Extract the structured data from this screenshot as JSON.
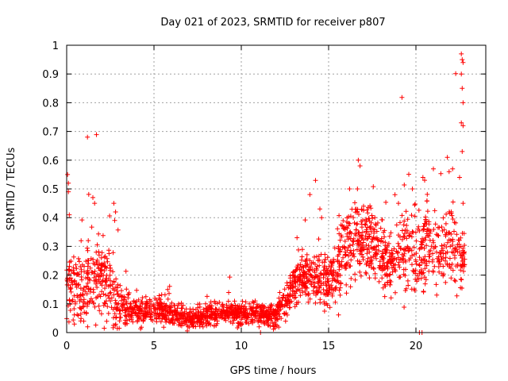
{
  "chart_data": {
    "type": "scatter",
    "title": "Day 021 of 2023, SRMTID for receiver p807",
    "xlabel": "GPS time / hours",
    "ylabel": "SRMTID / TECUs",
    "xlim": [
      0,
      24
    ],
    "ylim": [
      0,
      1
    ],
    "xticks": [
      0,
      5,
      10,
      15,
      20
    ],
    "yticks": [
      0,
      0.1,
      0.2,
      0.3,
      0.4,
      0.5,
      0.6,
      0.7,
      0.8,
      0.9,
      1
    ],
    "ytick_labels": [
      "0",
      "0.1",
      "0.2",
      "0.3",
      "0.4",
      "0.5",
      "0.6",
      "0.7",
      "0.8",
      "0.9",
      "1"
    ],
    "xtick_labels": [
      "0",
      "5",
      "10",
      "15",
      "20"
    ],
    "grid": true,
    "marker": "+",
    "series_color": "#ff0000",
    "x_extent": [
      0,
      22.8
    ],
    "level_profile": [
      [
        0.0,
        0.17,
        0.07
      ],
      [
        0.5,
        0.17,
        0.06
      ],
      [
        1.0,
        0.14,
        0.06
      ],
      [
        1.5,
        0.18,
        0.09
      ],
      [
        2.0,
        0.2,
        0.07
      ],
      [
        2.5,
        0.15,
        0.06
      ],
      [
        3.0,
        0.1,
        0.04
      ],
      [
        4.0,
        0.07,
        0.025
      ],
      [
        5.0,
        0.08,
        0.025
      ],
      [
        6.0,
        0.07,
        0.025
      ],
      [
        7.0,
        0.045,
        0.015
      ],
      [
        8.0,
        0.06,
        0.02
      ],
      [
        9.0,
        0.07,
        0.02
      ],
      [
        10.0,
        0.065,
        0.022
      ],
      [
        11.0,
        0.06,
        0.02
      ],
      [
        12.0,
        0.065,
        0.022
      ],
      [
        12.5,
        0.1,
        0.03
      ],
      [
        13.0,
        0.17,
        0.04
      ],
      [
        13.5,
        0.2,
        0.04
      ],
      [
        14.0,
        0.18,
        0.04
      ],
      [
        14.5,
        0.2,
        0.05
      ],
      [
        15.0,
        0.17,
        0.04
      ],
      [
        15.5,
        0.22,
        0.06
      ],
      [
        16.0,
        0.28,
        0.07
      ],
      [
        16.5,
        0.33,
        0.07
      ],
      [
        17.0,
        0.33,
        0.06
      ],
      [
        17.5,
        0.3,
        0.06
      ],
      [
        18.0,
        0.27,
        0.06
      ],
      [
        18.5,
        0.22,
        0.06
      ],
      [
        19.0,
        0.28,
        0.06
      ],
      [
        19.5,
        0.3,
        0.08
      ],
      [
        20.0,
        0.25,
        0.08
      ],
      [
        20.5,
        0.3,
        0.08
      ],
      [
        21.0,
        0.27,
        0.07
      ],
      [
        21.5,
        0.28,
        0.07
      ],
      [
        22.0,
        0.3,
        0.07
      ],
      [
        22.5,
        0.27,
        0.06
      ],
      [
        22.8,
        0.27,
        0.06
      ]
    ],
    "notable_points": [
      {
        "x": 0.05,
        "y": 0.55
      },
      {
        "x": 0.1,
        "y": 0.52
      },
      {
        "x": 0.1,
        "y": 0.49
      },
      {
        "x": 0.15,
        "y": 0.41
      },
      {
        "x": 1.5,
        "y": 0.47
      },
      {
        "x": 1.6,
        "y": 0.45
      },
      {
        "x": 2.7,
        "y": 0.45
      },
      {
        "x": 2.8,
        "y": 0.42
      },
      {
        "x": 2.75,
        "y": 0.39
      },
      {
        "x": 14.5,
        "y": 0.43
      },
      {
        "x": 14.6,
        "y": 0.4
      },
      {
        "x": 16.7,
        "y": 0.6
      },
      {
        "x": 16.8,
        "y": 0.58
      },
      {
        "x": 16.2,
        "y": 0.5
      },
      {
        "x": 17.0,
        "y": 0.44
      },
      {
        "x": 18.8,
        "y": 0.48
      },
      {
        "x": 19.0,
        "y": 0.45
      },
      {
        "x": 19.8,
        "y": 0.5
      },
      {
        "x": 20.4,
        "y": 0.54
      },
      {
        "x": 20.5,
        "y": 0.53
      },
      {
        "x": 21.0,
        "y": 0.57
      },
      {
        "x": 21.8,
        "y": 0.61
      },
      {
        "x": 21.9,
        "y": 0.56
      },
      {
        "x": 22.1,
        "y": 0.57
      },
      {
        "x": 22.6,
        "y": 0.97
      },
      {
        "x": 22.65,
        "y": 0.95
      },
      {
        "x": 22.7,
        "y": 0.94
      },
      {
        "x": 22.6,
        "y": 0.9
      },
      {
        "x": 22.65,
        "y": 0.85
      },
      {
        "x": 22.7,
        "y": 0.8
      },
      {
        "x": 22.6,
        "y": 0.73
      },
      {
        "x": 22.7,
        "y": 0.72
      },
      {
        "x": 22.65,
        "y": 0.63
      },
      {
        "x": 22.5,
        "y": 0.54
      },
      {
        "x": 22.7,
        "y": 0.45
      },
      {
        "x": 20.2,
        "y": 0.0
      },
      {
        "x": 20.35,
        "y": 0.0
      },
      {
        "x": 11.1,
        "y": 0.0
      },
      {
        "x": 1.2,
        "y": 0.02
      }
    ],
    "point_count": 2200
  }
}
